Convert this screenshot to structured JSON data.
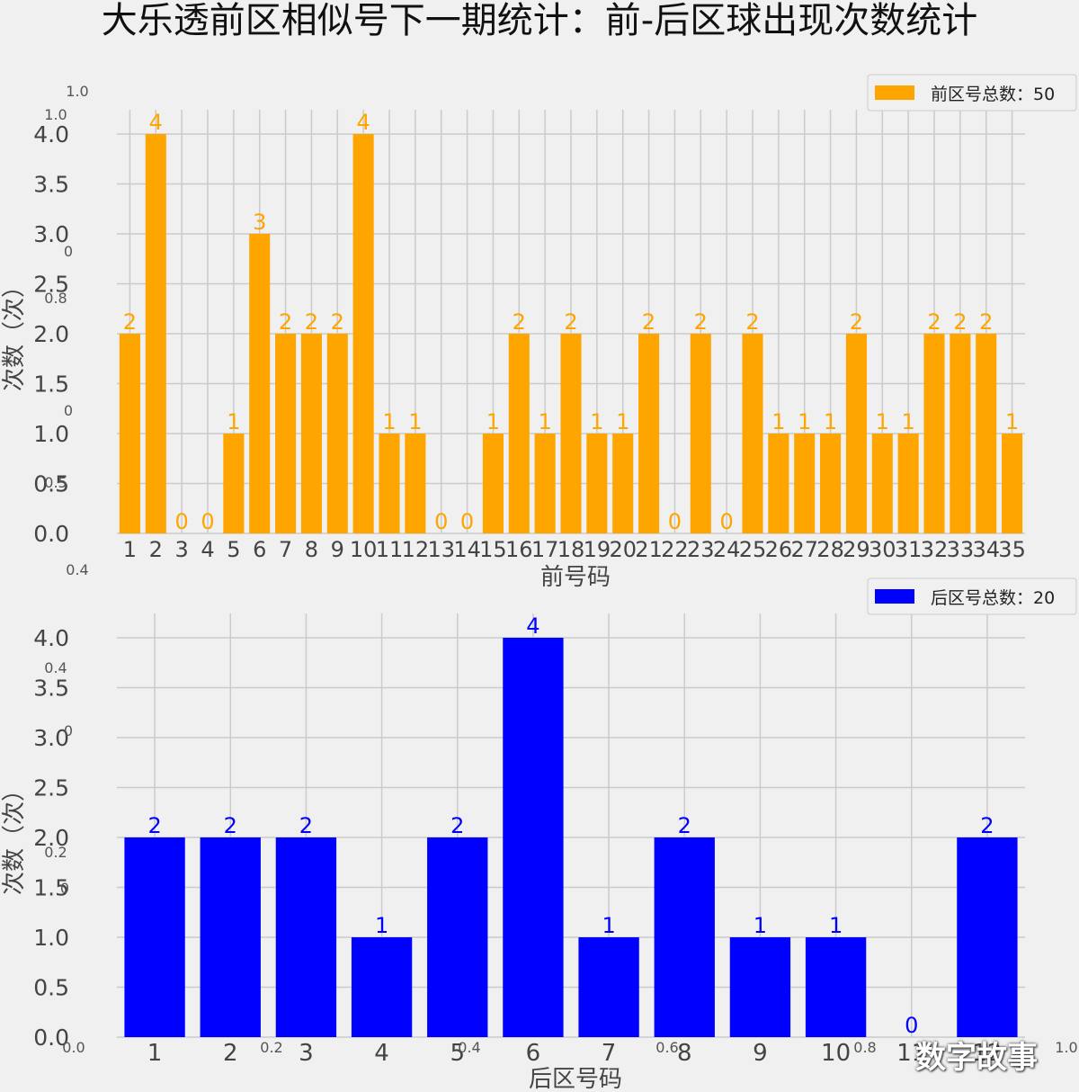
{
  "title": "大乐透前区相似号下一期统计：前-后区球出现次数统计",
  "watermark": "数字故事",
  "stray_ticks": [
    "1.0",
    "1.0",
    "0",
    "0.8",
    "0",
    "0.5",
    "0.4",
    "0.4",
    "0",
    "0.2",
    "0",
    "0.0",
    "0.2",
    "0.4",
    "0.6",
    "0.8",
    "1.0"
  ],
  "chart_data": [
    {
      "type": "bar",
      "color": "#FFA500",
      "legend": "前区号总数：50",
      "legend_position": "top-right",
      "xlabel": "前号码",
      "ylabel": "次数（次）",
      "categories": [
        "1",
        "2",
        "3",
        "4",
        "5",
        "6",
        "7",
        "8",
        "9",
        "10",
        "11",
        "12",
        "13",
        "14",
        "15",
        "16",
        "17",
        "18",
        "19",
        "20",
        "21",
        "22",
        "23",
        "24",
        "25",
        "26",
        "27",
        "28",
        "29",
        "30",
        "31",
        "32",
        "33",
        "34",
        "35"
      ],
      "values": [
        2,
        4,
        0,
        0,
        1,
        3,
        2,
        2,
        2,
        4,
        1,
        1,
        0,
        0,
        1,
        2,
        1,
        2,
        1,
        1,
        2,
        0,
        2,
        0,
        2,
        1,
        1,
        1,
        2,
        1,
        1,
        2,
        2,
        2,
        1
      ],
      "yticks": [
        "0.0",
        "0.5",
        "1.0",
        "1.5",
        "2.0",
        "2.5",
        "3.0",
        "3.5",
        "4.0"
      ],
      "ylim": [
        0,
        4
      ],
      "grid": true
    },
    {
      "type": "bar",
      "color": "#0000FF",
      "legend": "后区号总数：20",
      "legend_position": "top-right",
      "xlabel": "后区号码",
      "ylabel": "次数（次）",
      "categories": [
        "1",
        "2",
        "3",
        "4",
        "5",
        "6",
        "7",
        "8",
        "9",
        "10",
        "11",
        "12"
      ],
      "values": [
        2,
        2,
        2,
        1,
        2,
        4,
        1,
        2,
        1,
        1,
        0,
        2
      ],
      "yticks": [
        "0.0",
        "0.5",
        "1.0",
        "1.5",
        "2.0",
        "2.5",
        "3.0",
        "3.5",
        "4.0"
      ],
      "ylim": [
        0,
        4
      ],
      "grid": true
    }
  ]
}
